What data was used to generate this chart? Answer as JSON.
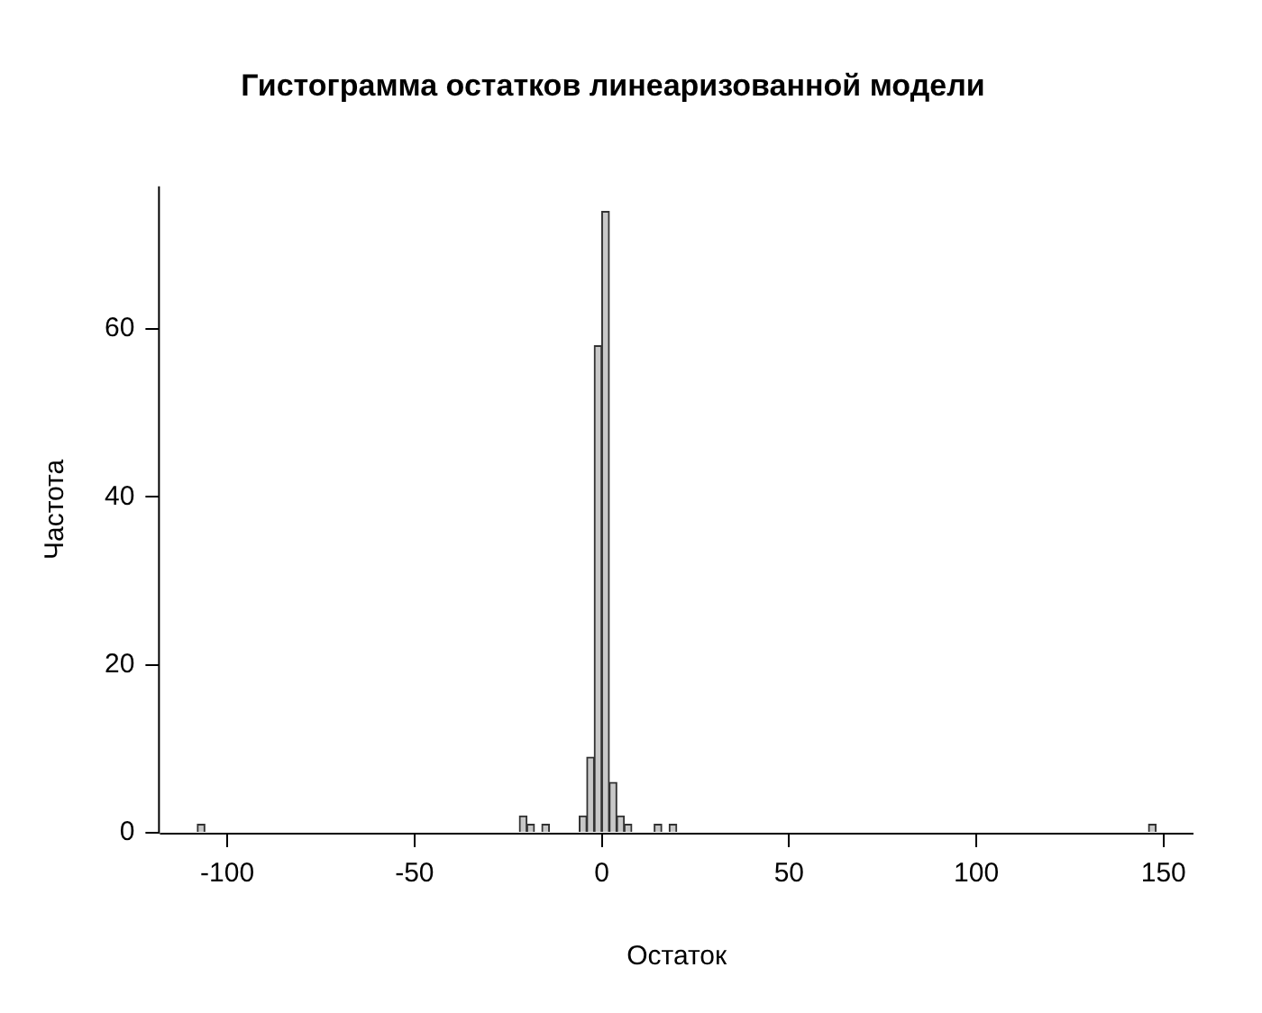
{
  "chart_data": {
    "type": "histogram",
    "title": "Гистограмма остатков линеаризованной модели",
    "xlabel": "Остаток",
    "ylabel": "Частота",
    "bins": [
      -108,
      -106,
      -104,
      -102,
      -100,
      -98,
      -96,
      -94,
      -92,
      -90,
      -88,
      -86,
      -84,
      -82,
      -80,
      -78,
      -76,
      -74,
      -72,
      -70,
      -68,
      -66,
      -64,
      -62,
      -60,
      -58,
      -56,
      -54,
      -52,
      -50,
      -48,
      -46,
      -44,
      -42,
      -40,
      -38,
      -36,
      -34,
      -32,
      -30,
      -28,
      -26,
      -24,
      -22,
      -20,
      -18,
      -16,
      -14,
      -12,
      -10,
      -8,
      -6,
      -4,
      -2,
      0,
      2,
      4,
      6,
      8,
      10,
      12,
      14,
      16,
      18,
      20,
      22,
      24,
      26,
      28,
      30,
      32,
      34,
      36,
      38,
      40,
      42,
      44,
      46,
      48,
      50,
      52,
      54,
      56,
      58,
      60,
      62,
      64,
      66,
      68,
      70,
      72,
      74,
      76,
      78,
      80,
      82,
      84,
      86,
      88,
      90,
      92,
      94,
      96,
      98,
      100,
      102,
      104,
      106,
      108,
      110,
      112,
      114,
      116,
      118,
      120,
      122,
      124,
      126,
      128,
      130,
      132,
      134,
      136,
      138,
      140,
      142,
      144,
      146,
      148
    ],
    "values": [
      1,
      0,
      0,
      0,
      0,
      0,
      0,
      0,
      0,
      0,
      0,
      0,
      0,
      0,
      0,
      0,
      0,
      0,
      0,
      0,
      0,
      0,
      0,
      0,
      0,
      0,
      0,
      0,
      0,
      0,
      0,
      0,
      0,
      0,
      0,
      0,
      0,
      0,
      0,
      0,
      0,
      0,
      0,
      2,
      1,
      0,
      1,
      0,
      0,
      0,
      0,
      2,
      9,
      58,
      74,
      6,
      2,
      1,
      0,
      0,
      0,
      1,
      0,
      1,
      0,
      0,
      0,
      0,
      0,
      0,
      0,
      0,
      0,
      0,
      0,
      0,
      0,
      0,
      0,
      0,
      0,
      0,
      0,
      0,
      0,
      0,
      0,
      0,
      0,
      0,
      0,
      0,
      0,
      0,
      0,
      0,
      0,
      0,
      0,
      0,
      0,
      0,
      0,
      0,
      0,
      0,
      0,
      0,
      0,
      0,
      0,
      0,
      0,
      0,
      0,
      0,
      0,
      0,
      0,
      0,
      0,
      0,
      0,
      0,
      0,
      0,
      0,
      1
    ],
    "color": "#c8c8c8",
    "xlim": [
      -118,
      158
    ],
    "ylim": [
      0,
      77
    ],
    "xticks": [
      -100,
      -50,
      0,
      50,
      100,
      150
    ],
    "yticks": [
      0,
      20,
      40,
      60
    ],
    "grid": false,
    "legend": false
  }
}
